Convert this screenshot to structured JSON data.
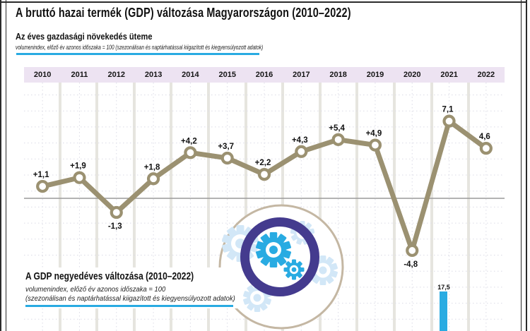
{
  "header": {
    "title": "A bruttó hazai termék (GDP) változása Magyarországon (2010–2022)"
  },
  "annual_section": {
    "heading": "Az éves gazdasági növekedés üteme",
    "subheading": "volumenindex, előző év azonos időszaka = 100 (szezonálisan és naptárhatással kiigazított és kiegyensúlyozott adatok)"
  },
  "quarterly_section": {
    "heading": "A GDP negyedéves változása (2010–2022)",
    "subheading_line1": "volumenindex, előző év azonos időszaka = 100",
    "subheading_line2": "(szezonálisan és naptárhatással kiigazított és kiegyensúlyozott adatok)"
  },
  "chart_data": [
    {
      "type": "line",
      "title": "Az éves gazdasági növekedés üteme",
      "categories": [
        "2010",
        "2011",
        "2012",
        "2013",
        "2014",
        "2015",
        "2016",
        "2017",
        "2018",
        "2019",
        "2020",
        "2021",
        "2022"
      ],
      "values": [
        1.1,
        1.9,
        -1.3,
        1.8,
        4.2,
        3.7,
        2.2,
        4.3,
        5.4,
        4.9,
        -4.8,
        7.1,
        4.6
      ],
      "point_labels": [
        "+1,1",
        "+1,9",
        "-1,3",
        "+1,8",
        "+4,2",
        "+3,7",
        "+2,2",
        "+4,3",
        "+5,4",
        "+4,9",
        "-4,8",
        "7,1",
        "4,6"
      ],
      "baseline_value": 0,
      "grid": true,
      "legend": "none",
      "line_color": "#9B9171",
      "marker": "open-circle"
    },
    {
      "type": "bar",
      "title": "A GDP negyedéves változása (2010–2022)",
      "categories": [
        "2010",
        "2011",
        "2012",
        "2013",
        "2014",
        "2015",
        "2016",
        "2017",
        "2018",
        "2019",
        "2020",
        "2021",
        "2022"
      ],
      "visible_bars": [
        {
          "category": "2021",
          "value": 17.5,
          "label": "17,5"
        }
      ],
      "bar_color": "#29ABE2"
    }
  ],
  "colors": {
    "accent_blue": "#29ABE2",
    "line_tan": "#9B9171",
    "zero_line_gray": "#9A9A9A",
    "year_strip_lavender": "#EDE3F2",
    "column_separator": "#E6E5DF",
    "grid_dash": "#DBDBE6",
    "icon_purple": "#443B8E",
    "icon_blue": "#29ABE2",
    "icon_pale_blue": "#D2E7F7",
    "icon_tan": "#C4B7A3"
  },
  "icon": {
    "name": "gears-in-circle"
  }
}
